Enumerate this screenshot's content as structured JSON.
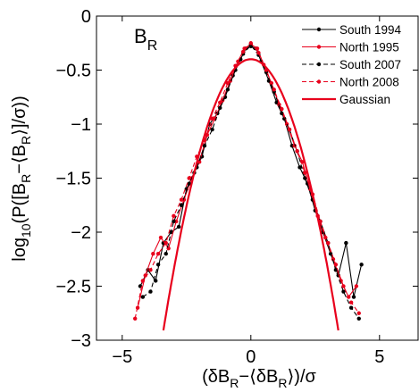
{
  "chart_data": {
    "type": "line",
    "panel_label": {
      "main": "B",
      "sub": "R"
    },
    "xlabel": "(δB_R−⟨δB_R⟩)/σ",
    "ylabel": "log_10(P([B_R−⟨B_R⟩]/σ))",
    "xlim": [
      -6,
      6.5
    ],
    "ylim": [
      -3,
      0
    ],
    "x_ticks": [
      -5,
      0,
      5
    ],
    "y_ticks": [
      0,
      -0.5,
      -1,
      -1.5,
      -2,
      -2.5,
      -3
    ],
    "x_tick_labels": [
      "−5",
      "0",
      "5"
    ],
    "y_tick_labels": [
      "0",
      "−0.5",
      "−1",
      "−1.5",
      "−2",
      "−2.5",
      "−3"
    ],
    "grid": false,
    "legend_position": "top-right",
    "series": [
      {
        "name": "South 1994",
        "color": "#000000",
        "style": "solid",
        "marker": "dot",
        "x": [
          -4.3,
          -4.0,
          -3.7,
          -3.4,
          -3.1,
          -2.8,
          -2.5,
          -2.2,
          -1.9,
          -1.6,
          -1.3,
          -1.0,
          -0.7,
          -0.4,
          -0.2,
          0.0,
          0.2,
          0.4,
          0.7,
          1.0,
          1.3,
          1.6,
          1.9,
          2.2,
          2.5,
          2.8,
          3.1,
          3.4,
          3.7,
          4.0,
          4.3
        ],
        "y": [
          -2.5,
          -2.35,
          -2.45,
          -2.1,
          -2.0,
          -1.95,
          -1.6,
          -1.45,
          -1.3,
          -1.0,
          -0.9,
          -0.75,
          -0.55,
          -0.4,
          -0.3,
          -0.28,
          -0.3,
          -0.42,
          -0.6,
          -0.8,
          -0.95,
          -1.2,
          -1.4,
          -1.55,
          -1.8,
          -2.0,
          -2.2,
          -2.4,
          -2.1,
          -2.6,
          -2.3
        ]
      },
      {
        "name": "North 1995",
        "color": "#e8001c",
        "style": "solid",
        "marker": "dot",
        "x": [
          -4.4,
          -4.1,
          -3.8,
          -3.5,
          -3.2,
          -2.9,
          -2.6,
          -2.3,
          -2.0,
          -1.7,
          -1.4,
          -1.1,
          -0.8,
          -0.5,
          -0.25,
          0.0,
          0.25,
          0.5,
          0.8,
          1.1,
          1.4,
          1.7,
          2.0,
          2.3,
          2.6,
          2.9,
          3.2,
          3.5,
          3.8,
          4.1
        ],
        "y": [
          -2.7,
          -2.4,
          -2.2,
          -2.05,
          -2.15,
          -1.9,
          -1.7,
          -1.5,
          -1.35,
          -1.1,
          -0.95,
          -0.78,
          -0.6,
          -0.42,
          -0.3,
          -0.26,
          -0.3,
          -0.45,
          -0.62,
          -0.82,
          -1.0,
          -1.2,
          -1.35,
          -1.6,
          -1.85,
          -2.05,
          -2.25,
          -2.45,
          -2.6,
          -2.5
        ]
      },
      {
        "name": "South 2007",
        "color": "#000000",
        "style": "dashed",
        "marker": "dot",
        "x": [
          -4.2,
          -3.9,
          -3.6,
          -3.3,
          -3.0,
          -2.7,
          -2.4,
          -2.1,
          -1.8,
          -1.5,
          -1.2,
          -0.9,
          -0.6,
          -0.3,
          0.0,
          0.3,
          0.6,
          0.9,
          1.2,
          1.5,
          1.8,
          2.1,
          2.4,
          2.7,
          3.0,
          3.3,
          3.6,
          3.9,
          4.2
        ],
        "y": [
          -2.6,
          -2.55,
          -2.3,
          -2.2,
          -1.9,
          -1.75,
          -1.55,
          -1.4,
          -1.2,
          -1.05,
          -0.85,
          -0.68,
          -0.5,
          -0.35,
          -0.27,
          -0.36,
          -0.52,
          -0.7,
          -0.9,
          -1.05,
          -1.25,
          -1.5,
          -1.7,
          -1.9,
          -2.1,
          -2.35,
          -2.55,
          -2.7,
          -2.8
        ]
      },
      {
        "name": "North 2008",
        "color": "#e8001c",
        "style": "dashed",
        "marker": "dot",
        "x": [
          -4.5,
          -4.2,
          -3.9,
          -3.6,
          -3.3,
          -3.0,
          -2.7,
          -2.4,
          -2.1,
          -1.8,
          -1.5,
          -1.2,
          -0.9,
          -0.6,
          -0.3,
          0.0,
          0.3,
          0.6,
          0.9,
          1.2,
          1.5,
          1.8,
          2.1,
          2.4,
          2.7,
          3.0,
          3.3,
          3.6,
          3.9,
          4.2
        ],
        "y": [
          -2.8,
          -2.45,
          -2.35,
          -2.2,
          -2.1,
          -1.85,
          -1.7,
          -1.5,
          -1.3,
          -1.15,
          -0.95,
          -0.8,
          -0.62,
          -0.46,
          -0.33,
          -0.25,
          -0.34,
          -0.5,
          -0.68,
          -0.86,
          -1.05,
          -1.25,
          -1.45,
          -1.65,
          -1.9,
          -2.1,
          -2.3,
          -2.5,
          -2.65,
          -2.75
        ]
      },
      {
        "name": "Gaussian",
        "color": "#e8001c",
        "style": "solid",
        "marker": "none",
        "function": "gaussian",
        "mu": 0,
        "sigma": 1
      }
    ]
  }
}
